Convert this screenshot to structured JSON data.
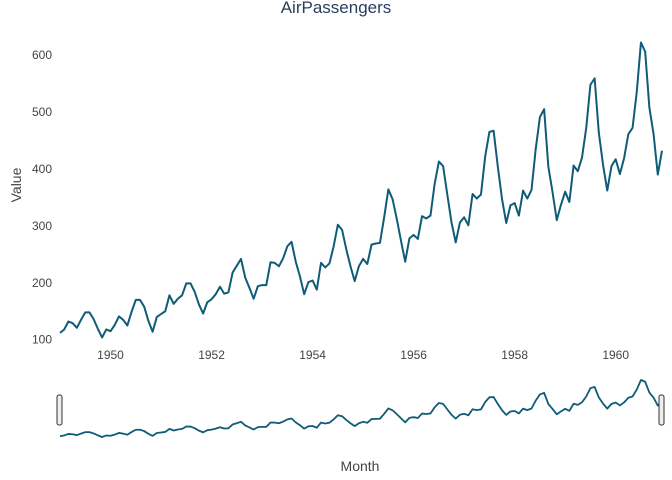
{
  "chart_data": {
    "type": "line",
    "title": "AirPassengers",
    "xlabel": "Month",
    "ylabel": "Value",
    "x_start": "1949-01",
    "x_end": "1960-12",
    "x_ticks": [
      "1950",
      "1952",
      "1954",
      "1956",
      "1958",
      "1960"
    ],
    "y_ticks": [
      "100",
      "200",
      "300",
      "400",
      "500",
      "600"
    ],
    "ylim": [
      96,
      644
    ],
    "grid": false,
    "legend": "none",
    "range_slider": true,
    "line_color": "#0f5c78",
    "series": [
      {
        "values": [
          112,
          118,
          132,
          129,
          121,
          135,
          148,
          148,
          136,
          119,
          104,
          118,
          115,
          126,
          141,
          135,
          125,
          149,
          170,
          170,
          158,
          133,
          114,
          140,
          145,
          150,
          178,
          163,
          172,
          178,
          199,
          199,
          184,
          162,
          146,
          166,
          171,
          180,
          193,
          181,
          183,
          218,
          230,
          242,
          209,
          191,
          172,
          194,
          196,
          196,
          236,
          235,
          229,
          243,
          264,
          272,
          237,
          211,
          180,
          201,
          204,
          188,
          235,
          227,
          234,
          264,
          302,
          293,
          259,
          229,
          203,
          229,
          242,
          233,
          267,
          269,
          270,
          315,
          364,
          347,
          312,
          274,
          237,
          278,
          284,
          277,
          317,
          313,
          318,
          374,
          413,
          405,
          355,
          306,
          271,
          306,
          315,
          301,
          356,
          348,
          355,
          422,
          465,
          467,
          404,
          347,
          305,
          336,
          340,
          318,
          362,
          348,
          363,
          435,
          491,
          505,
          404,
          359,
          310,
          337,
          360,
          342,
          406,
          396,
          420,
          472,
          548,
          559,
          463,
          407,
          362,
          405,
          417,
          391,
          419,
          461,
          472,
          535,
          622,
          606,
          508,
          461,
          390,
          432
        ]
      }
    ]
  }
}
